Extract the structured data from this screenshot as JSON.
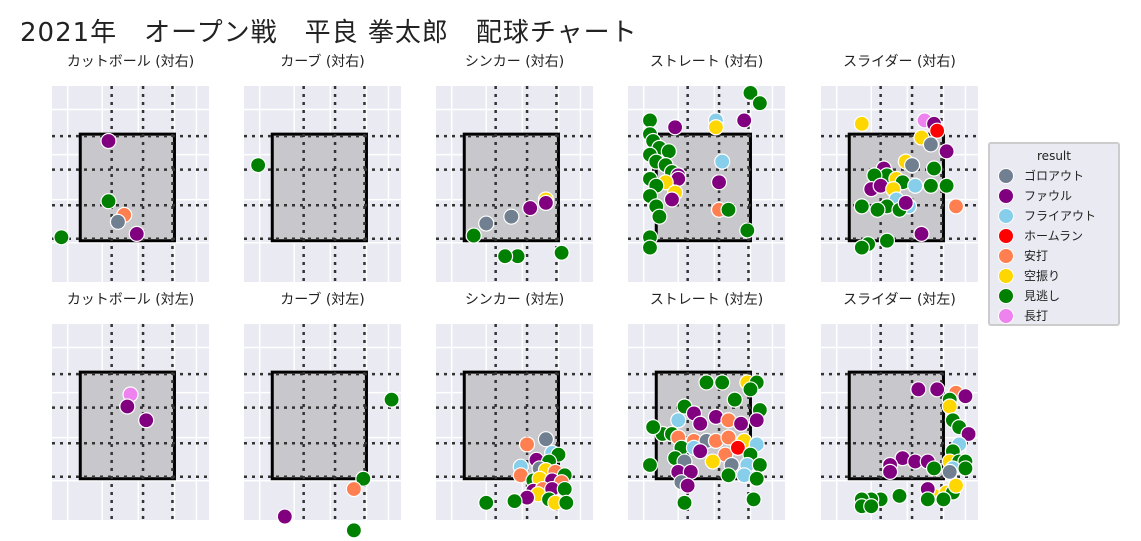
{
  "title": "2021年　オープン戦　平良 拳太郎　配球チャート",
  "legend": {
    "title": "result",
    "items": [
      {
        "label": "ゴロアウト",
        "color": "#708090"
      },
      {
        "label": "ファウル",
        "color": "#800080"
      },
      {
        "label": "フライアウト",
        "color": "#87ceeb"
      },
      {
        "label": "ホームラン",
        "color": "#ff0000"
      },
      {
        "label": "安打",
        "color": "#ff7f50"
      },
      {
        "label": "空振り",
        "color": "#ffd700"
      },
      {
        "label": "見逃し",
        "color": "#008000"
      },
      {
        "label": "長打",
        "color": "#ee82ee"
      }
    ]
  },
  "chart_data": [
    {
      "type": "scatter",
      "title": "カットボール (対右)",
      "points": [
        {
          "x": -0.4,
          "y": 1.6,
          "r": "ファウル"
        },
        {
          "x": -0.4,
          "y": -0.15,
          "r": "見逃し"
        },
        {
          "x": 0.1,
          "y": -0.55,
          "r": "安打"
        },
        {
          "x": -0.1,
          "y": -0.75,
          "r": "ゴロアウト"
        },
        {
          "x": 0.5,
          "y": -1.1,
          "r": "ファウル"
        },
        {
          "x": -1.9,
          "y": -1.2,
          "r": "見逃し"
        }
      ]
    },
    {
      "type": "scatter",
      "title": "カーブ (対右)",
      "points": [
        {
          "x": -1.75,
          "y": 0.9,
          "r": "見逃し"
        }
      ]
    },
    {
      "type": "scatter",
      "title": "シンカー (対右)",
      "points": [
        {
          "x": 1.3,
          "y": -0.1,
          "r": "空振り"
        },
        {
          "x": 1.3,
          "y": -0.2,
          "r": "ファウル"
        },
        {
          "x": 0.8,
          "y": -0.35,
          "r": "ファウル"
        },
        {
          "x": 0.2,
          "y": -0.6,
          "r": "ゴロアウト"
        },
        {
          "x": -0.6,
          "y": -0.8,
          "r": "ゴロアウト"
        },
        {
          "x": -1.0,
          "y": -1.15,
          "r": "見逃し"
        },
        {
          "x": 0.4,
          "y": -1.75,
          "r": "見逃し"
        },
        {
          "x": 0.0,
          "y": -1.75,
          "r": "見逃し"
        },
        {
          "x": 1.8,
          "y": -1.65,
          "r": "見逃し"
        }
      ]
    },
    {
      "type": "scatter",
      "title": "ストレート (対右)",
      "points": [
        {
          "x": 1.7,
          "y": 3.0,
          "r": "見逃し"
        },
        {
          "x": 2.0,
          "y": 2.7,
          "r": "見逃し"
        },
        {
          "x": 0.6,
          "y": 2.2,
          "r": "フライアウト"
        },
        {
          "x": 1.5,
          "y": 2.2,
          "r": "ファウル"
        },
        {
          "x": 0.6,
          "y": 2.0,
          "r": "空振り"
        },
        {
          "x": -0.7,
          "y": 2.0,
          "r": "ファウル"
        },
        {
          "x": -1.5,
          "y": 2.2,
          "r": "見逃し"
        },
        {
          "x": -1.5,
          "y": 1.8,
          "r": "見逃し"
        },
        {
          "x": -1.4,
          "y": 1.6,
          "r": "見逃し"
        },
        {
          "x": -1.2,
          "y": 1.4,
          "r": "見逃し"
        },
        {
          "x": -0.9,
          "y": 1.3,
          "r": "見逃し"
        },
        {
          "x": -1.5,
          "y": 1.2,
          "r": "見逃し"
        },
        {
          "x": -1.3,
          "y": 1.0,
          "r": "見逃し"
        },
        {
          "x": -1.0,
          "y": 0.9,
          "r": "見逃し"
        },
        {
          "x": -0.8,
          "y": 0.7,
          "r": "見逃し"
        },
        {
          "x": -0.6,
          "y": 0.6,
          "r": "ファウル"
        },
        {
          "x": -0.6,
          "y": 0.5,
          "r": "ファウル"
        },
        {
          "x": -1.0,
          "y": 0.4,
          "r": "空振り"
        },
        {
          "x": -1.5,
          "y": 0.5,
          "r": "見逃し"
        },
        {
          "x": -1.3,
          "y": 0.3,
          "r": "見逃し"
        },
        {
          "x": -0.7,
          "y": 0.1,
          "r": "空振り"
        },
        {
          "x": -1.5,
          "y": 0.0,
          "r": "見逃し"
        },
        {
          "x": -1.3,
          "y": -0.3,
          "r": "見逃し"
        },
        {
          "x": -0.8,
          "y": -0.1,
          "r": "ファウル"
        },
        {
          "x": -1.2,
          "y": -0.6,
          "r": "見逃し"
        },
        {
          "x": 0.8,
          "y": 1.0,
          "r": "フライアウト"
        },
        {
          "x": 0.7,
          "y": 0.4,
          "r": "ファウル"
        },
        {
          "x": 0.7,
          "y": -0.4,
          "r": "安打"
        },
        {
          "x": 1.0,
          "y": -0.4,
          "r": "見逃し"
        },
        {
          "x": 1.6,
          "y": -1.0,
          "r": "見逃し"
        },
        {
          "x": -1.5,
          "y": -1.2,
          "r": "見逃し"
        },
        {
          "x": -1.5,
          "y": -1.5,
          "r": "見逃し"
        }
      ]
    },
    {
      "type": "scatter",
      "title": "スライダー (対右)",
      "points": [
        {
          "x": -0.9,
          "y": 2.1,
          "r": "空振り"
        },
        {
          "x": 1.1,
          "y": 2.2,
          "r": "長打"
        },
        {
          "x": 1.4,
          "y": 2.1,
          "r": "ファウル"
        },
        {
          "x": 1.5,
          "y": 1.9,
          "r": "ホームラン"
        },
        {
          "x": 1.0,
          "y": 1.7,
          "r": "空振り"
        },
        {
          "x": 1.3,
          "y": 1.5,
          "r": "ゴロアウト"
        },
        {
          "x": 1.8,
          "y": 1.3,
          "r": "ファウル"
        },
        {
          "x": 0.5,
          "y": 1.0,
          "r": "空振り"
        },
        {
          "x": 0.7,
          "y": 0.9,
          "r": "ゴロアウト"
        },
        {
          "x": -0.2,
          "y": 0.8,
          "r": "ファウル"
        },
        {
          "x": -0.1,
          "y": 0.6,
          "r": "見逃し"
        },
        {
          "x": 0.2,
          "y": 0.5,
          "r": "空振り"
        },
        {
          "x": 0.4,
          "y": 0.4,
          "r": "見逃し"
        },
        {
          "x": -0.5,
          "y": 0.6,
          "r": "見逃し"
        },
        {
          "x": -0.6,
          "y": 0.2,
          "r": "ファウル"
        },
        {
          "x": -0.3,
          "y": 0.3,
          "r": "ファウル"
        },
        {
          "x": 0.1,
          "y": 0.2,
          "r": "空振り"
        },
        {
          "x": 0.8,
          "y": 0.3,
          "r": "フライアウト"
        },
        {
          "x": 1.4,
          "y": 0.8,
          "r": "見逃し"
        },
        {
          "x": 1.8,
          "y": 0.3,
          "r": "見逃し"
        },
        {
          "x": 1.3,
          "y": 0.3,
          "r": "見逃し"
        },
        {
          "x": 0.2,
          "y": -0.1,
          "r": "フライアウト"
        },
        {
          "x": 0.6,
          "y": -0.3,
          "r": "フライアウト"
        },
        {
          "x": -0.1,
          "y": -0.3,
          "r": "見逃し"
        },
        {
          "x": 0.3,
          "y": -0.4,
          "r": "見逃し"
        },
        {
          "x": -0.4,
          "y": -0.4,
          "r": "見逃し"
        },
        {
          "x": 0.5,
          "y": -0.2,
          "r": "ファウル"
        },
        {
          "x": -0.9,
          "y": -0.3,
          "r": "見逃し"
        },
        {
          "x": 2.1,
          "y": -0.3,
          "r": "安打"
        },
        {
          "x": 1.0,
          "y": -1.1,
          "r": "ファウル"
        },
        {
          "x": -0.1,
          "y": -1.3,
          "r": "見逃し"
        },
        {
          "x": -0.7,
          "y": -1.4,
          "r": "見逃し"
        },
        {
          "x": -0.9,
          "y": -1.5,
          "r": "見逃し"
        }
      ]
    },
    {
      "type": "scatter",
      "title": "カットボール (対左)",
      "points": [
        {
          "x": 0.3,
          "y": 1.15,
          "r": "長打"
        },
        {
          "x": 0.2,
          "y": 0.8,
          "r": "ファウル"
        },
        {
          "x": 0.8,
          "y": 0.4,
          "r": "ファウル"
        }
      ]
    },
    {
      "type": "scatter",
      "title": "カーブ (対左)",
      "points": [
        {
          "x": 2.5,
          "y": 1.0,
          "r": "見逃し"
        },
        {
          "x": 1.6,
          "y": -1.3,
          "r": "見逃し"
        },
        {
          "x": 1.3,
          "y": -1.6,
          "r": "安打"
        },
        {
          "x": -0.9,
          "y": -2.4,
          "r": "ファウル"
        },
        {
          "x": 1.3,
          "y": -2.8,
          "r": "見逃し"
        }
      ]
    },
    {
      "type": "scatter",
      "title": "シンカー (対左)",
      "points": [
        {
          "x": 1.3,
          "y": -0.15,
          "r": "ゴロアウト"
        },
        {
          "x": 0.7,
          "y": -0.3,
          "r": "安打"
        },
        {
          "x": 1.5,
          "y": -0.55,
          "r": "フライアウト"
        },
        {
          "x": 1.7,
          "y": -0.6,
          "r": "見逃し"
        },
        {
          "x": 1.0,
          "y": -0.75,
          "r": "ファウル"
        },
        {
          "x": 1.4,
          "y": -0.8,
          "r": "見逃し"
        },
        {
          "x": 0.5,
          "y": -0.95,
          "r": "フライアウト"
        },
        {
          "x": 1.1,
          "y": -1.0,
          "r": "ゴロアウト"
        },
        {
          "x": 1.3,
          "y": -1.05,
          "r": "空振り"
        },
        {
          "x": 1.6,
          "y": -1.1,
          "r": "安打"
        },
        {
          "x": 1.9,
          "y": -1.2,
          "r": "見逃し"
        },
        {
          "x": 0.5,
          "y": -1.2,
          "r": "安打"
        },
        {
          "x": 0.9,
          "y": -1.35,
          "r": "見逃し"
        },
        {
          "x": 1.1,
          "y": -1.3,
          "r": "空振り"
        },
        {
          "x": 1.5,
          "y": -1.35,
          "r": "ファウル"
        },
        {
          "x": 1.8,
          "y": -1.4,
          "r": "安打"
        },
        {
          "x": 0.9,
          "y": -1.65,
          "r": "ファウル"
        },
        {
          "x": 1.2,
          "y": -1.6,
          "r": "安打"
        },
        {
          "x": 1.5,
          "y": -1.6,
          "r": "ファウル"
        },
        {
          "x": 1.9,
          "y": -1.6,
          "r": "見逃し"
        },
        {
          "x": 1.05,
          "y": -1.75,
          "r": "空振り"
        },
        {
          "x": 0.7,
          "y": -1.85,
          "r": "ファウル"
        },
        {
          "x": 0.3,
          "y": -1.95,
          "r": "見逃し"
        },
        {
          "x": 1.4,
          "y": -1.9,
          "r": "見逃し"
        },
        {
          "x": 1.6,
          "y": -2.0,
          "r": "空振り"
        },
        {
          "x": 1.95,
          "y": -2.0,
          "r": "見逃し"
        },
        {
          "x": -0.6,
          "y": -2.0,
          "r": "見逃し"
        }
      ]
    },
    {
      "type": "scatter",
      "title": "ストレート (対左)",
      "points": [
        {
          "x": 0.3,
          "y": 1.5,
          "r": "見逃し"
        },
        {
          "x": 0.8,
          "y": 1.5,
          "r": "見逃し"
        },
        {
          "x": 1.6,
          "y": 1.5,
          "r": "空振り"
        },
        {
          "x": 1.9,
          "y": 1.5,
          "r": "見逃し"
        },
        {
          "x": 1.7,
          "y": 1.3,
          "r": "見逃し"
        },
        {
          "x": 1.2,
          "y": 1.0,
          "r": "見逃し"
        },
        {
          "x": -0.4,
          "y": 0.8,
          "r": "見逃し"
        },
        {
          "x": -0.1,
          "y": 0.6,
          "r": "ファウル"
        },
        {
          "x": 0.6,
          "y": 0.5,
          "r": "ファウル"
        },
        {
          "x": 2.0,
          "y": 0.7,
          "r": "見逃し"
        },
        {
          "x": -0.6,
          "y": 0.4,
          "r": "フライアウト"
        },
        {
          "x": 0.1,
          "y": 0.3,
          "r": "ファウル"
        },
        {
          "x": 1.0,
          "y": 0.4,
          "r": "安打"
        },
        {
          "x": 1.4,
          "y": 0.3,
          "r": "ファウル"
        },
        {
          "x": 1.9,
          "y": 0.4,
          "r": "ファウル"
        },
        {
          "x": -1.1,
          "y": 0.0,
          "r": "見逃し"
        },
        {
          "x": -0.8,
          "y": 0.0,
          "r": "見逃し"
        },
        {
          "x": -0.6,
          "y": -0.1,
          "r": "安打"
        },
        {
          "x": -0.1,
          "y": -0.2,
          "r": "安打"
        },
        {
          "x": 0.3,
          "y": -0.2,
          "r": "ゴロアウト"
        },
        {
          "x": 0.6,
          "y": -0.2,
          "r": "安打"
        },
        {
          "x": 1.0,
          "y": -0.1,
          "r": "安打"
        },
        {
          "x": 1.5,
          "y": -0.2,
          "r": "空振り"
        },
        {
          "x": 1.9,
          "y": -0.3,
          "r": "フライアウト"
        },
        {
          "x": -0.5,
          "y": -0.4,
          "r": "見逃し"
        },
        {
          "x": -0.1,
          "y": -0.4,
          "r": "フライアウト"
        },
        {
          "x": 0.1,
          "y": -0.5,
          "r": "ファウル"
        },
        {
          "x": 0.9,
          "y": -0.6,
          "r": "安打"
        },
        {
          "x": 1.3,
          "y": -0.4,
          "r": "ホームラン"
        },
        {
          "x": 1.7,
          "y": -0.6,
          "r": "見逃し"
        },
        {
          "x": -0.7,
          "y": -0.7,
          "r": "見逃し"
        },
        {
          "x": -0.4,
          "y": -0.8,
          "r": "ゴロアウト"
        },
        {
          "x": 0.5,
          "y": -0.8,
          "r": "空振り"
        },
        {
          "x": 1.1,
          "y": -0.9,
          "r": "ゴロアウト"
        },
        {
          "x": 1.6,
          "y": -0.9,
          "r": "フライアウト"
        },
        {
          "x": 2.0,
          "y": -0.9,
          "r": "見逃し"
        },
        {
          "x": -0.6,
          "y": -1.1,
          "r": "ファウル"
        },
        {
          "x": -0.2,
          "y": -1.1,
          "r": "ファウル"
        },
        {
          "x": 1.0,
          "y": -1.2,
          "r": "見逃し"
        },
        {
          "x": 1.5,
          "y": -1.2,
          "r": "フライアウト"
        },
        {
          "x": 1.9,
          "y": -1.3,
          "r": "見逃し"
        },
        {
          "x": -0.5,
          "y": -1.4,
          "r": "ゴロアウト"
        },
        {
          "x": -0.3,
          "y": -1.5,
          "r": "ファウル"
        },
        {
          "x": -1.4,
          "y": 0.2,
          "r": "見逃し"
        },
        {
          "x": -1.5,
          "y": -0.9,
          "r": "見逃し"
        },
        {
          "x": 1.8,
          "y": -1.9,
          "r": "見逃し"
        },
        {
          "x": -0.4,
          "y": -2.0,
          "r": "見逃し"
        }
      ]
    },
    {
      "type": "scatter",
      "title": "スライダー (対左)",
      "points": [
        {
          "x": 0.9,
          "y": 1.3,
          "r": "ファウル"
        },
        {
          "x": 1.5,
          "y": 1.3,
          "r": "ファウル"
        },
        {
          "x": 2.1,
          "y": 1.2,
          "r": "安打"
        },
        {
          "x": 2.4,
          "y": 1.1,
          "r": "ファウル"
        },
        {
          "x": 1.9,
          "y": 1.0,
          "r": "見逃し"
        },
        {
          "x": 1.9,
          "y": 0.8,
          "r": "空振り"
        },
        {
          "x": 2.0,
          "y": 0.4,
          "r": "見逃し"
        },
        {
          "x": 2.2,
          "y": 0.2,
          "r": "見逃し"
        },
        {
          "x": 2.5,
          "y": 0.0,
          "r": "ファウル"
        },
        {
          "x": 2.2,
          "y": -0.3,
          "r": "フライアウト"
        },
        {
          "x": 2.0,
          "y": -0.5,
          "r": "見逃し"
        },
        {
          "x": 1.9,
          "y": -0.8,
          "r": "空振り"
        },
        {
          "x": 2.2,
          "y": -0.8,
          "r": "見逃し"
        },
        {
          "x": 2.4,
          "y": -0.8,
          "r": "見逃し"
        },
        {
          "x": 2.0,
          "y": -1.0,
          "r": "フライアウト"
        },
        {
          "x": 2.4,
          "y": -1.0,
          "r": "見逃し"
        },
        {
          "x": 1.9,
          "y": -1.1,
          "r": "ゴロアウト"
        },
        {
          "x": 0.4,
          "y": -0.7,
          "r": "ファウル"
        },
        {
          "x": 0.8,
          "y": -0.8,
          "r": "ファウル"
        },
        {
          "x": 1.2,
          "y": -0.8,
          "r": "ファウル"
        },
        {
          "x": 0.0,
          "y": -0.9,
          "r": "ファウル"
        },
        {
          "x": 0.0,
          "y": -1.1,
          "r": "ファウル"
        },
        {
          "x": 1.4,
          "y": -1.0,
          "r": "見逃し"
        },
        {
          "x": 1.4,
          "y": -1.8,
          "r": "空振り"
        },
        {
          "x": 1.8,
          "y": -1.7,
          "r": "空振り"
        },
        {
          "x": 2.0,
          "y": -1.7,
          "r": "見逃し"
        },
        {
          "x": 2.1,
          "y": -1.5,
          "r": "空振り"
        },
        {
          "x": 1.2,
          "y": -1.6,
          "r": "ファウル"
        },
        {
          "x": -0.3,
          "y": -1.9,
          "r": "見逃し"
        },
        {
          "x": -0.6,
          "y": -1.9,
          "r": "見逃し"
        },
        {
          "x": -0.9,
          "y": -1.9,
          "r": "見逃し"
        },
        {
          "x": 0.3,
          "y": -1.8,
          "r": "見逃し"
        },
        {
          "x": -0.9,
          "y": -2.1,
          "r": "見逃し"
        },
        {
          "x": -0.6,
          "y": -2.1,
          "r": "見逃し"
        },
        {
          "x": 1.2,
          "y": -1.9,
          "r": "見逃し"
        },
        {
          "x": 1.7,
          "y": -1.9,
          "r": "見逃し"
        }
      ]
    }
  ]
}
